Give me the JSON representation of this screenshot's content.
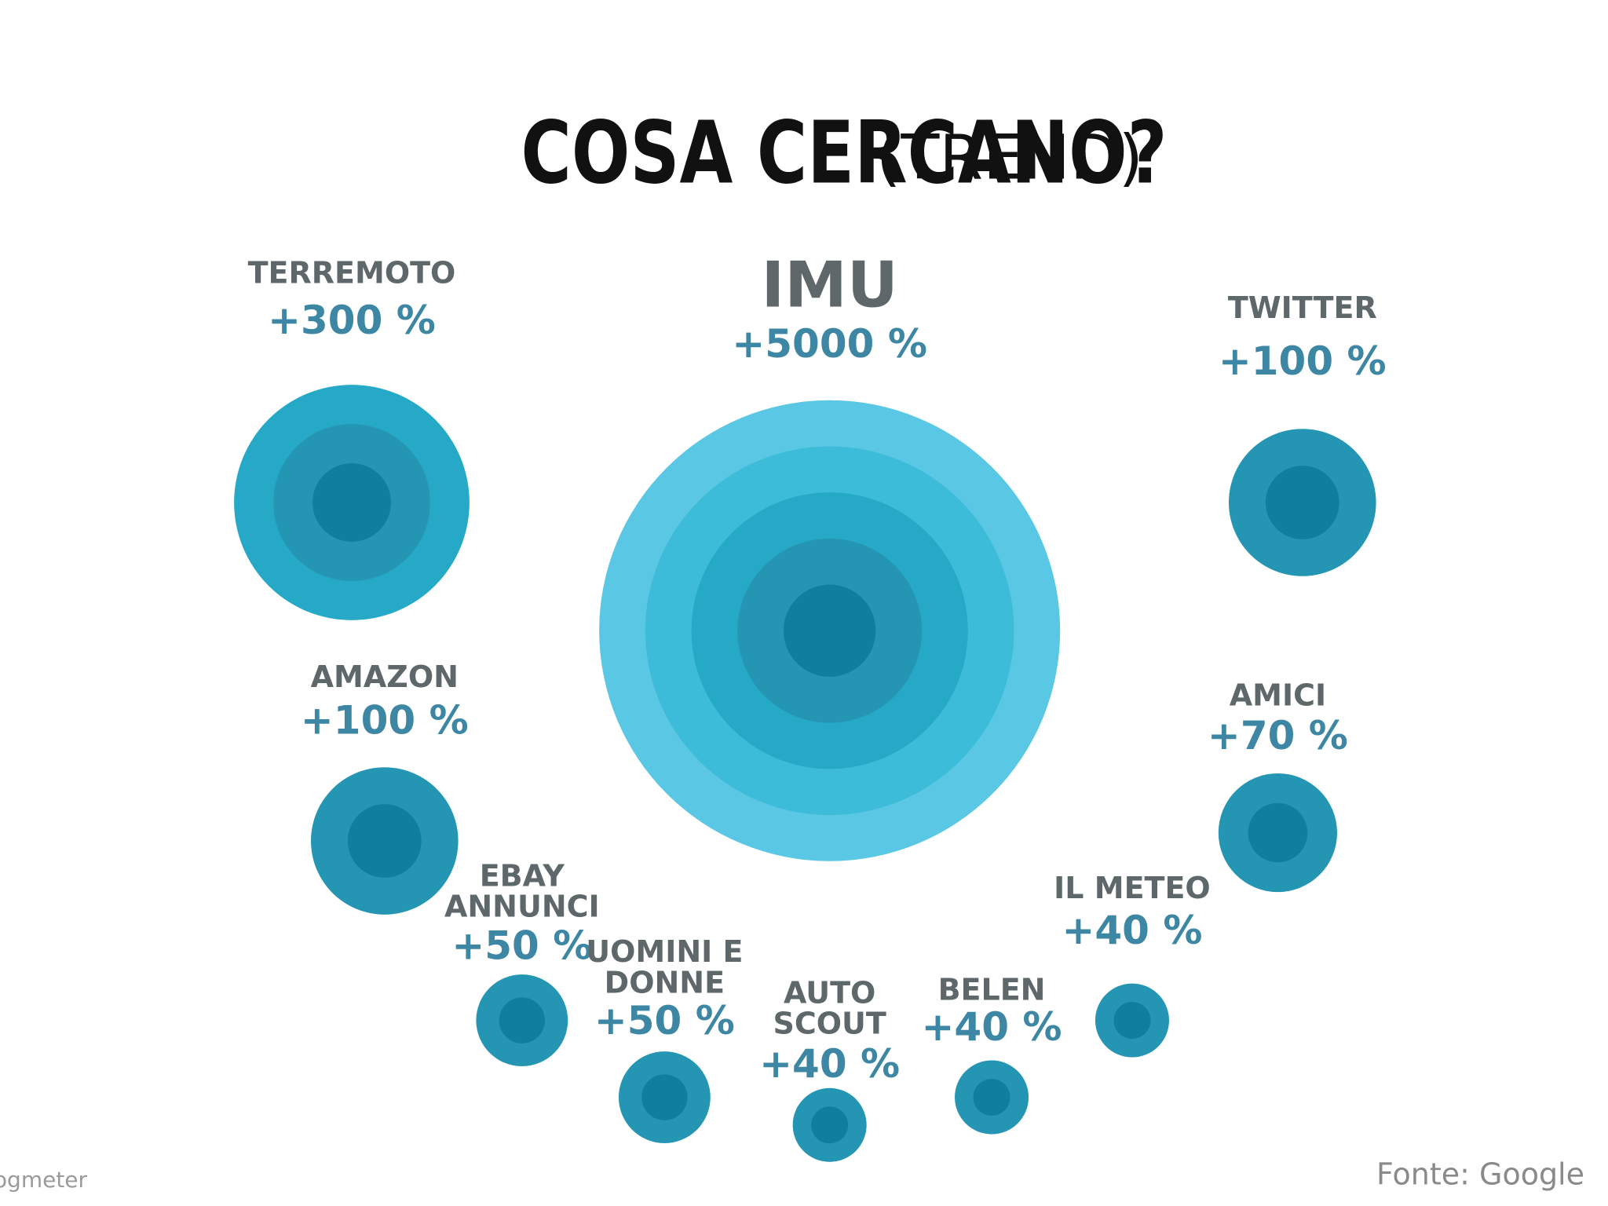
{
  "chart_data": {
    "type": "bubble",
    "title": "COSA CERCANO?",
    "subtitle": "(TREND)",
    "categories": [
      [
        "TERREMOTO"
      ],
      [
        "IMU"
      ],
      [
        "TWITTER"
      ],
      [
        "AMAZON"
      ],
      [
        "AMICI"
      ],
      [
        "EBAY",
        "ANNUNCI"
      ],
      [
        "UOMINI E",
        "DONNE"
      ],
      [
        "AUTO",
        "SCOUT"
      ],
      [
        "BELEN"
      ],
      [
        "IL METEO"
      ]
    ],
    "values": [
      300,
      5000,
      100,
      100,
      70,
      50,
      50,
      40,
      40,
      40
    ],
    "value_labels": [
      "+300 %",
      "+5000 %",
      "+100 %",
      "+100 %",
      "+70 %",
      "+50 %",
      "+50 %",
      "+40 %",
      "+40 %",
      "+40 %"
    ],
    "credit": "©Blogmeter",
    "source": "Fonte: Google"
  }
}
